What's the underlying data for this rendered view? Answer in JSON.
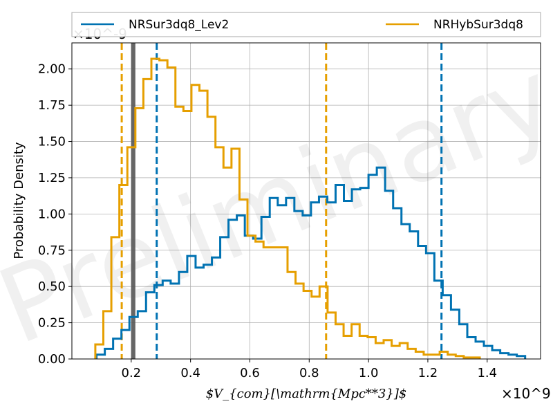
{
  "chart_data": {
    "type": "histogram",
    "title": "",
    "xlabel": "$V_{com}[\\mathrm{Mpc**3}]$",
    "ylabel": "Probability Density",
    "x_offset_label": "×10^9",
    "y_offset_label": "×10^-9",
    "watermark": "Preliminary",
    "xlim": [
      0.0,
      1.58
    ],
    "ylim": [
      0.0,
      2.18
    ],
    "xticks": [
      0.2,
      0.4,
      0.6,
      0.8,
      1.0,
      1.2,
      1.4
    ],
    "yticks": [
      0.0,
      0.25,
      0.5,
      0.75,
      1.0,
      1.25,
      1.5,
      1.75,
      2.0
    ],
    "grid": true,
    "legend_position": "top, above plot",
    "series": [
      {
        "name": "NRSur3dq8_Lev2",
        "color": "#0072b2",
        "edges": [
          0.083,
          0.111,
          0.139,
          0.167,
          0.194,
          0.222,
          0.25,
          0.278,
          0.306,
          0.333,
          0.361,
          0.389,
          0.417,
          0.444,
          0.472,
          0.5,
          0.528,
          0.556,
          0.583,
          0.611,
          0.639,
          0.667,
          0.694,
          0.722,
          0.75,
          0.778,
          0.806,
          0.833,
          0.861,
          0.889,
          0.917,
          0.944,
          0.972,
          1.0,
          1.028,
          1.056,
          1.083,
          1.111,
          1.139,
          1.167,
          1.194,
          1.222,
          1.25,
          1.278,
          1.306,
          1.333,
          1.361,
          1.389,
          1.417,
          1.444,
          1.472,
          1.5,
          1.528
        ],
        "values": [
          0.03,
          0.07,
          0.14,
          0.2,
          0.29,
          0.33,
          0.46,
          0.51,
          0.54,
          0.52,
          0.6,
          0.71,
          0.63,
          0.65,
          0.7,
          0.84,
          0.96,
          0.99,
          0.85,
          0.83,
          0.98,
          1.11,
          1.06,
          1.11,
          1.02,
          0.99,
          1.08,
          1.12,
          1.08,
          1.2,
          1.09,
          1.17,
          1.18,
          1.27,
          1.32,
          1.16,
          1.04,
          0.93,
          0.88,
          0.78,
          0.73,
          0.54,
          0.44,
          0.34,
          0.24,
          0.15,
          0.12,
          0.09,
          0.06,
          0.04,
          0.03,
          0.02
        ]
      },
      {
        "name": "NRHybSur3dq8",
        "color": "#e69f00",
        "edges": [
          0.079,
          0.106,
          0.133,
          0.16,
          0.187,
          0.214,
          0.241,
          0.268,
          0.295,
          0.322,
          0.349,
          0.376,
          0.403,
          0.43,
          0.457,
          0.484,
          0.511,
          0.538,
          0.565,
          0.592,
          0.619,
          0.646,
          0.673,
          0.7,
          0.727,
          0.754,
          0.781,
          0.808,
          0.835,
          0.862,
          0.889,
          0.916,
          0.943,
          0.97,
          0.997,
          1.024,
          1.051,
          1.078,
          1.105,
          1.132,
          1.159,
          1.186,
          1.213,
          1.24,
          1.267,
          1.294,
          1.321,
          1.348,
          1.375
        ],
        "values": [
          0.1,
          0.33,
          0.84,
          1.2,
          1.46,
          1.73,
          1.93,
          2.07,
          2.06,
          2.01,
          1.74,
          1.71,
          1.89,
          1.85,
          1.67,
          1.46,
          1.32,
          1.45,
          1.1,
          0.85,
          0.81,
          0.77,
          0.77,
          0.77,
          0.6,
          0.52,
          0.47,
          0.43,
          0.5,
          0.32,
          0.24,
          0.16,
          0.24,
          0.16,
          0.15,
          0.11,
          0.13,
          0.09,
          0.11,
          0.07,
          0.05,
          0.03,
          0.03,
          0.05,
          0.03,
          0.02,
          0.01,
          0.01
        ]
      }
    ],
    "vertical_lines": [
      {
        "x": 0.168,
        "color": "#e69f00",
        "style": "dashed"
      },
      {
        "x": 0.286,
        "color": "#0072b2",
        "style": "dashed"
      },
      {
        "x": 0.857,
        "color": "#e69f00",
        "style": "dashed"
      },
      {
        "x": 1.246,
        "color": "#0072b2",
        "style": "dashed"
      },
      {
        "x": 0.207,
        "color": "#555555",
        "style": "solid"
      }
    ]
  }
}
